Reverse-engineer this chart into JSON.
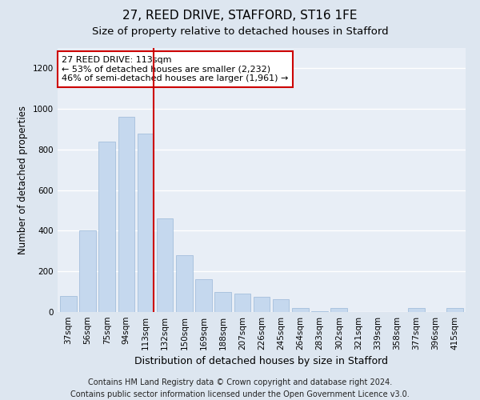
{
  "title1": "27, REED DRIVE, STAFFORD, ST16 1FE",
  "title2": "Size of property relative to detached houses in Stafford",
  "xlabel": "Distribution of detached houses by size in Stafford",
  "ylabel": "Number of detached properties",
  "categories": [
    "37sqm",
    "56sqm",
    "75sqm",
    "94sqm",
    "113sqm",
    "132sqm",
    "150sqm",
    "169sqm",
    "188sqm",
    "207sqm",
    "226sqm",
    "245sqm",
    "264sqm",
    "283sqm",
    "302sqm",
    "321sqm",
    "339sqm",
    "358sqm",
    "377sqm",
    "396sqm",
    "415sqm"
  ],
  "values": [
    80,
    400,
    840,
    960,
    880,
    460,
    280,
    160,
    100,
    90,
    75,
    65,
    20,
    5,
    20,
    0,
    0,
    0,
    20,
    0,
    20
  ],
  "bar_color": "#c5d8ee",
  "bar_edge_color": "#9ab8d8",
  "highlight_index": 4,
  "highlight_line_color": "#cc0000",
  "annotation_text": "27 REED DRIVE: 113sqm\n← 53% of detached houses are smaller (2,232)\n46% of semi-detached houses are larger (1,961) →",
  "annotation_box_facecolor": "#ffffff",
  "annotation_box_edgecolor": "#cc0000",
  "ylim": [
    0,
    1300
  ],
  "yticks": [
    0,
    200,
    400,
    600,
    800,
    1000,
    1200
  ],
  "background_color": "#dde6f0",
  "plot_bg_color": "#e8eef6",
  "footer_text": "Contains HM Land Registry data © Crown copyright and database right 2024.\nContains public sector information licensed under the Open Government Licence v3.0.",
  "title1_fontsize": 11,
  "title2_fontsize": 9.5,
  "xlabel_fontsize": 9,
  "ylabel_fontsize": 8.5,
  "tick_fontsize": 7.5,
  "annotation_fontsize": 8,
  "footer_fontsize": 7,
  "grid_color": "#ffffff",
  "grid_linewidth": 1.0
}
